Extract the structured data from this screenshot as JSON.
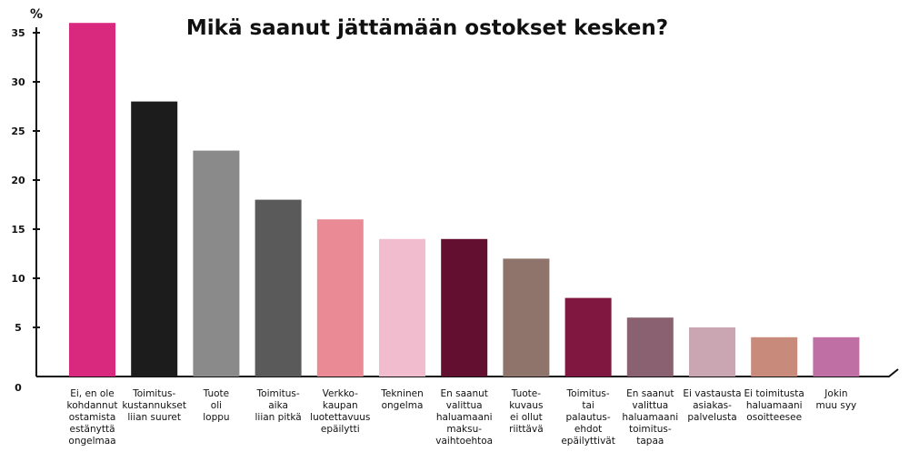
{
  "chart_data": {
    "type": "bar",
    "title": "Mikä saanut jättämään ostokset kesken?",
    "ylabel": "%",
    "ylim": [
      0,
      35
    ],
    "yticks": [
      0,
      5,
      10,
      15,
      20,
      25,
      30,
      35
    ],
    "grid": false,
    "categories": [
      [
        "Ei, en ole",
        "kohdannut",
        "ostamista",
        "estänyttä",
        "ongelmaa"
      ],
      [
        "Toimitus-",
        "kustannukset",
        "liian suuret"
      ],
      [
        "Tuote",
        "oli",
        "loppu"
      ],
      [
        "Toimitus-",
        "aika",
        "liian pitkä"
      ],
      [
        "Verkko-",
        "kaupan",
        "luotettavuus",
        "epäilytti"
      ],
      [
        "Tekninen",
        "ongelma"
      ],
      [
        "En saanut",
        "valittua",
        "haluamaani",
        "maksu-",
        "vaihtoehtoa"
      ],
      [
        "Tuote-",
        "kuvaus",
        "ei ollut",
        "riittävä"
      ],
      [
        "Toimitus-",
        "tai",
        "palautus-",
        "ehdot",
        "epäilyttivät"
      ],
      [
        "En saanut",
        "valittua",
        "haluamaani",
        "toimitus-",
        "tapaa"
      ],
      [
        "Ei vastausta",
        "asiakas-",
        "palvelusta"
      ],
      [
        "Ei toimitusta",
        "haluamaani",
        "osoitteesee"
      ],
      [
        "Jokin",
        "muu syy"
      ]
    ],
    "values": [
      36,
      28,
      23,
      18,
      16,
      14,
      14,
      12,
      8,
      6,
      5,
      4,
      4
    ],
    "colors": [
      "#d8297f",
      "#1c1c1c",
      "#8a8a8a",
      "#5a5a5a",
      "#ea8a95",
      "#f2bccf",
      "#620f30",
      "#8f746c",
      "#7f1740",
      "#8a6170",
      "#c9a6b1",
      "#c78a7b",
      "#bf6fa4"
    ]
  }
}
